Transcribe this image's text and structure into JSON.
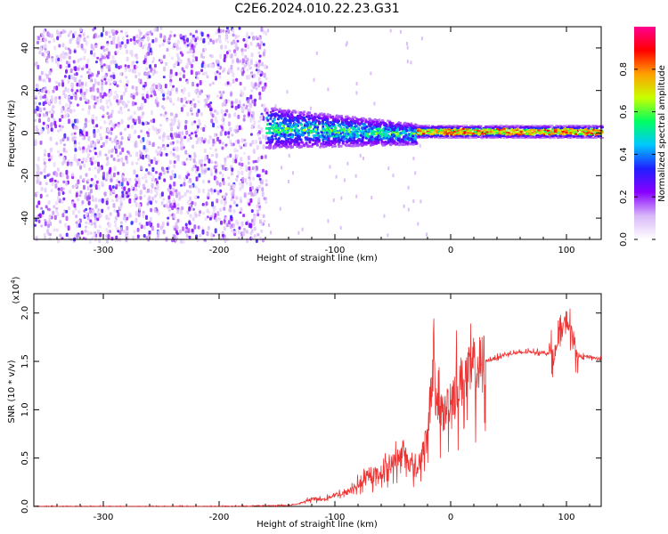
{
  "title": "C2E6.2024.010.22.23.G31",
  "chart_data": [
    {
      "type": "heatmap",
      "xlabel": "Height of straight line (km)",
      "ylabel": "Frequency (Hz)",
      "xlim": [
        -360,
        130
      ],
      "ylim": [
        -50,
        50
      ],
      "xticks": [
        -300,
        -200,
        -100,
        0,
        100
      ],
      "yticks": [
        -40,
        -20,
        0,
        20,
        40
      ],
      "colorbar": {
        "label": "Normalized spectral amplitude",
        "range": [
          0,
          1
        ],
        "ticks": [
          "0.0",
          "0.2",
          "0.4",
          "0.6",
          "0.8"
        ],
        "colors": [
          "#ffffff",
          "#d8b8f8",
          "#8800ff",
          "#2020ff",
          "#00c8ff",
          "#00ff60",
          "#c8ff00",
          "#ffa000",
          "#ff0000",
          "#ff0090"
        ]
      },
      "regions": [
        {
          "x_range": [
            -360,
            -160
          ],
          "freq_range": [
            -50,
            50
          ],
          "amplitude": "0.1-0.3 noise"
        },
        {
          "x_range": [
            -160,
            -30
          ],
          "freq_center": 3,
          "freq_halfwidth": 8,
          "amplitude": "0.2-0.5"
        },
        {
          "x_range": [
            -30,
            130
          ],
          "freq_center": 1,
          "freq_halfwidth": 3,
          "amplitude": "0.5-0.9"
        }
      ]
    },
    {
      "type": "line",
      "xlabel": "Height of straight line (km)",
      "ylabel": "SNR (10 * v/v)",
      "yscale_label": "(x10",
      "yscale_exp": "4",
      "yscale_close": ")",
      "xlim": [
        -360,
        130
      ],
      "ylim": [
        0,
        2.2
      ],
      "xticks": [
        -300,
        -200,
        -100,
        0,
        100
      ],
      "yticks": [
        "0.0",
        "0.5",
        "1.0",
        "1.5",
        "2.0"
      ],
      "color": "#ee3333",
      "series": [
        {
          "x": [
            -360,
            -300,
            -200,
            -140,
            -130,
            -120,
            -110,
            -100,
            -90,
            -80,
            -70,
            -60,
            -50,
            -40,
            -30,
            -20,
            -15,
            -12,
            -10,
            -5,
            0,
            10,
            20,
            30,
            50,
            70,
            90,
            100,
            110,
            120,
            130
          ],
          "values": [
            0.0,
            0.0,
            0.0,
            0.01,
            0.03,
            0.08,
            0.07,
            0.12,
            0.14,
            0.22,
            0.3,
            0.35,
            0.45,
            0.55,
            0.35,
            0.7,
            1.55,
            0.95,
            1.0,
            0.95,
            1.15,
            1.3,
            1.4,
            1.5,
            1.58,
            1.6,
            1.58,
            1.95,
            1.55,
            1.55,
            1.52
          ]
        }
      ]
    }
  ]
}
